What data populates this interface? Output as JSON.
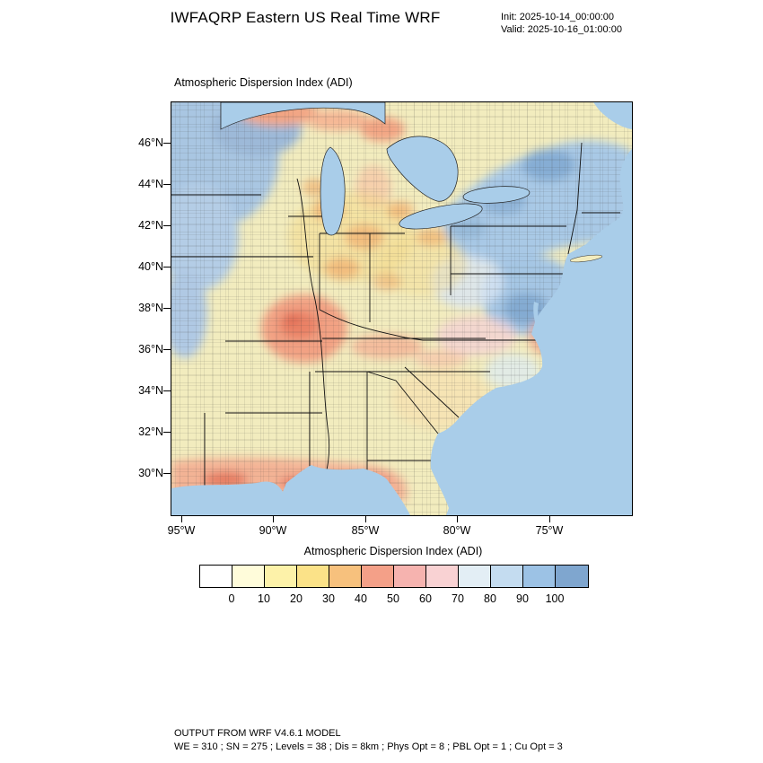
{
  "header": {
    "title": "IWFAQRP Eastern US Real Time WRF",
    "init": "Init: 2025-10-14_00:00:00",
    "valid": "Valid: 2025-10-16_01:00:00"
  },
  "map": {
    "title": "Atmospheric Dispersion Index   (ADI)",
    "lat_ticks": [
      "46°N",
      "44°N",
      "42°N",
      "40°N",
      "38°N",
      "36°N",
      "34°N",
      "32°N",
      "30°N"
    ],
    "lon_ticks": [
      "95°W",
      "90°W",
      "85°W",
      "80°W",
      "75°W"
    ]
  },
  "colorbar": {
    "label": "Atmospheric Dispersion Index  (ADI)",
    "ticks": [
      "0",
      "10",
      "20",
      "30",
      "40",
      "50",
      "60",
      "70",
      "80",
      "90",
      "100"
    ],
    "colors": [
      "#ffffff",
      "#fffcda",
      "#fdf2a9",
      "#fbe288",
      "#f7c17d",
      "#f4a088",
      "#f6b3af",
      "#f9d2d3",
      "#e3eef5",
      "#c4dcf0",
      "#9cc2e5",
      "#7fa6cf"
    ],
    "ocean_color": "#a9cde9",
    "land_color": "#f2ecbe"
  },
  "footer": {
    "line1": "OUTPUT FROM WRF V4.6.1 MODEL",
    "line2": "WE = 310 ; SN = 275 ; Levels = 38 ; Dis = 8km ; Phys Opt = 8 ; PBL Opt = 1 ; Cu Opt = 3"
  }
}
